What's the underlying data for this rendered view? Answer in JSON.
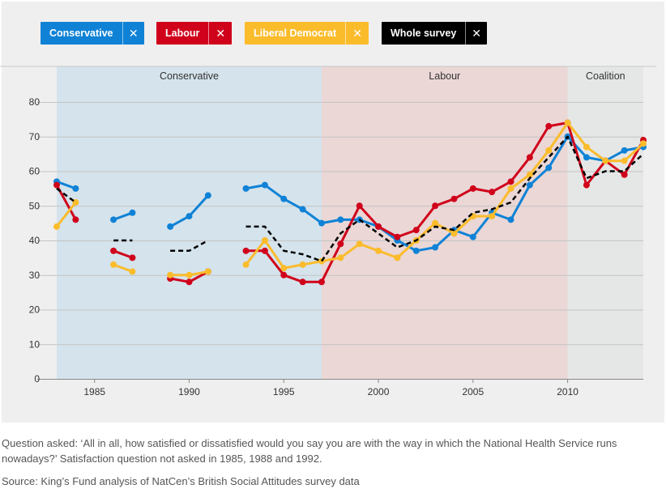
{
  "legend": [
    {
      "key": "con",
      "label": "Conservative",
      "close": "✕",
      "color": "#0f82d6"
    },
    {
      "key": "lab",
      "label": "Labour",
      "close": "✕",
      "color": "#d0021b"
    },
    {
      "key": "ld",
      "label": "Liberal Democrat",
      "close": "✕",
      "color": "#fbbc2c"
    },
    {
      "key": "all",
      "label": "Whole survey",
      "close": "✕",
      "color": "#000000"
    }
  ],
  "chart_data": {
    "type": "line",
    "title": "",
    "xlabel": "",
    "ylabel": "",
    "xlim": [
      1983,
      2014
    ],
    "ylim": [
      0,
      80
    ],
    "x_ticks": [
      1985,
      1990,
      1995,
      2000,
      2005,
      2010
    ],
    "y_ticks": [
      0,
      10,
      20,
      30,
      40,
      50,
      60,
      70,
      80
    ],
    "grid": true,
    "periods": [
      {
        "label": "Conservative",
        "start": 1983,
        "end": 1997,
        "color": "#d4e3ec"
      },
      {
        "label": "Labour",
        "start": 1997,
        "end": 2010,
        "color": "#ead7d6"
      },
      {
        "label": "Coalition",
        "start": 2010,
        "end": 2014,
        "color": "#e5e7e6"
      }
    ],
    "series": [
      {
        "key": "con",
        "name": "Conservative",
        "color": "#0f82d6",
        "dashed": false,
        "x": [
          1983,
          1984,
          1986,
          1987,
          1989,
          1990,
          1991,
          1993,
          1994,
          1995,
          1996,
          1997,
          1998,
          1999,
          2000,
          2001,
          2002,
          2003,
          2004,
          2005,
          2006,
          2007,
          2008,
          2009,
          2010,
          2011,
          2012,
          2013,
          2014
        ],
        "y": [
          57,
          55,
          46,
          48,
          44,
          47,
          53,
          55,
          56,
          52,
          49,
          45,
          46,
          46,
          44,
          40,
          37,
          38,
          43,
          41,
          48,
          46,
          56,
          61,
          70,
          64,
          63,
          66,
          67
        ]
      },
      {
        "key": "lab",
        "name": "Labour",
        "color": "#d0021b",
        "dashed": false,
        "x": [
          1983,
          1984,
          1986,
          1987,
          1989,
          1990,
          1991,
          1993,
          1994,
          1995,
          1996,
          1997,
          1998,
          1999,
          2000,
          2001,
          2002,
          2003,
          2004,
          2005,
          2006,
          2007,
          2008,
          2009,
          2010,
          2011,
          2012,
          2013,
          2014
        ],
        "y": [
          56,
          46,
          37,
          35,
          29,
          28,
          31,
          37,
          37,
          30,
          28,
          28,
          39,
          50,
          44,
          41,
          43,
          50,
          52,
          55,
          54,
          57,
          64,
          73,
          74,
          56,
          63,
          59,
          69
        ]
      },
      {
        "key": "ld",
        "name": "Liberal Democrat",
        "color": "#fbbc2c",
        "dashed": false,
        "x": [
          1983,
          1984,
          1986,
          1987,
          1989,
          1990,
          1991,
          1993,
          1994,
          1995,
          1996,
          1997,
          1998,
          1999,
          2000,
          2001,
          2002,
          2003,
          2004,
          2005,
          2006,
          2007,
          2008,
          2009,
          2010,
          2011,
          2012,
          2013,
          2014
        ],
        "y": [
          44,
          51,
          33,
          31,
          30,
          30,
          31,
          33,
          40,
          32,
          33,
          34,
          35,
          39,
          37,
          35,
          40,
          45,
          42,
          47,
          47,
          55,
          59,
          66,
          74,
          67,
          63,
          63,
          68
        ]
      },
      {
        "key": "all",
        "name": "Whole survey",
        "color": "#000000",
        "dashed": true,
        "x": [
          1983,
          1984,
          1986,
          1987,
          1989,
          1990,
          1991,
          1993,
          1994,
          1995,
          1996,
          1997,
          1998,
          1999,
          2000,
          2001,
          2002,
          2003,
          2004,
          2005,
          2006,
          2007,
          2008,
          2009,
          2010,
          2011,
          2012,
          2013,
          2014
        ],
        "y": [
          55,
          51,
          40,
          40,
          37,
          37,
          40,
          44,
          44,
          37,
          36,
          34,
          42,
          46,
          42,
          38,
          40,
          44,
          43,
          48,
          49,
          51,
          58,
          64,
          70,
          58,
          60,
          60,
          65
        ]
      }
    ],
    "missing_years": [
      1985,
      1988,
      1992
    ]
  },
  "notes": {
    "question": "Question asked: ‘All in all, how satisfied or dissatisfied would you say you are with the way in which the National Health Service runs nowadays?’ Satisfaction question not asked in 1985, 1988 and 1992.",
    "source": "Source: King’s Fund analysis of NatCen’s British Social Attitudes survey data"
  }
}
